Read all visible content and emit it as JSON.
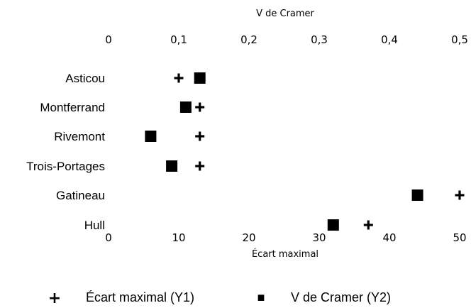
{
  "chart_data": {
    "type": "scatter",
    "orientation": "horizontal",
    "categories": [
      "Asticou",
      "Montferrand",
      "Rivemont",
      "Trois-Portages",
      "Gatineau",
      "Hull"
    ],
    "series": [
      {
        "name": "Écart maximal (Y1)",
        "axis": "bottom",
        "marker": "plus",
        "values": [
          10,
          13,
          13,
          13,
          50,
          37
        ]
      },
      {
        "name": "V de Cramer (Y2)",
        "axis": "top",
        "marker": "square",
        "values": [
          0.13,
          0.11,
          0.06,
          0.09,
          0.44,
          0.32
        ]
      }
    ],
    "top_axis": {
      "title": "V de Cramer",
      "range": [
        0,
        0.5
      ],
      "ticks": [
        0,
        0.1,
        0.2,
        0.3,
        0.4,
        0.5
      ],
      "tick_labels": [
        "0",
        "0,1",
        "0,2",
        "0,3",
        "0,4",
        "0,5"
      ]
    },
    "bottom_axis": {
      "title": "Écart maximal",
      "range": [
        0,
        50
      ],
      "ticks": [
        0,
        10,
        20,
        30,
        40,
        50
      ],
      "tick_labels": [
        "0",
        "10",
        "20",
        "30",
        "40",
        "50"
      ]
    },
    "grid": false,
    "legend_position": "bottom",
    "legend": [
      {
        "symbol": "+",
        "label": "Écart maximal (Y1)"
      },
      {
        "symbol": "■",
        "label": "V de Cramer (Y2)"
      }
    ]
  }
}
